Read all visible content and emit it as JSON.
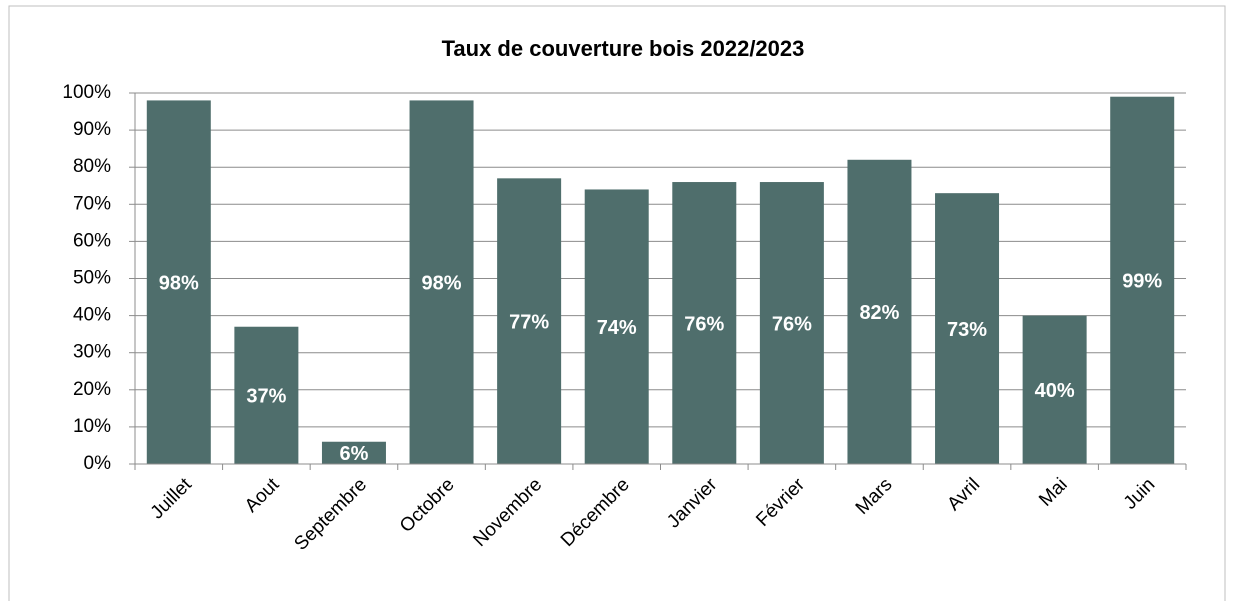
{
  "chart_data": {
    "type": "bar",
    "title": "Taux de couverture bois 2022/2023",
    "categories": [
      "Juillet",
      "Aout",
      "Septembre",
      "Octobre",
      "Novembre",
      "Décembre",
      "Janvier",
      "Février",
      "Mars",
      "Avril",
      "Mai",
      "Juin"
    ],
    "values": [
      98,
      37,
      6,
      98,
      77,
      74,
      76,
      76,
      82,
      73,
      40,
      99
    ],
    "value_labels": [
      "98%",
      "37%",
      "6%",
      "98%",
      "77%",
      "74%",
      "76%",
      "76%",
      "82%",
      "73%",
      "40%",
      "99%"
    ],
    "color": "#4f6e6c",
    "ylim": [
      0,
      100
    ],
    "yticks": [
      {
        "value": 0,
        "label": "0%"
      },
      {
        "value": 10,
        "label": "10%"
      },
      {
        "value": 20,
        "label": "20%"
      },
      {
        "value": 30,
        "label": "30%"
      },
      {
        "value": 40,
        "label": "40%"
      },
      {
        "value": 50,
        "label": "50%"
      },
      {
        "value": 60,
        "label": "60%"
      },
      {
        "value": 70,
        "label": "70%"
      },
      {
        "value": 80,
        "label": "80%"
      },
      {
        "value": 90,
        "label": "90%"
      },
      {
        "value": 100,
        "label": "100%"
      }
    ],
    "grid": true
  }
}
